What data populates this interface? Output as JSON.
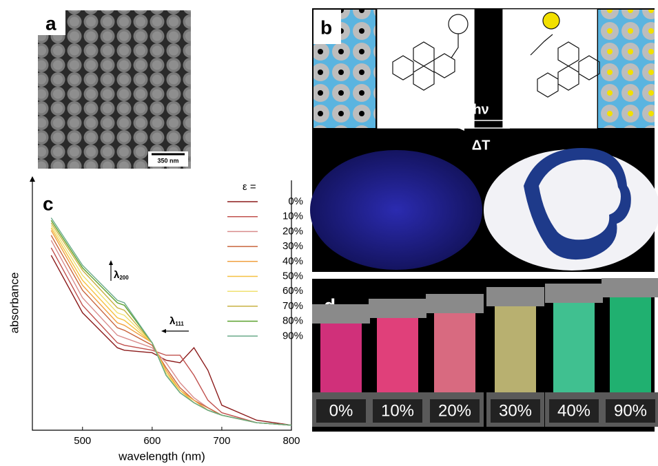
{
  "panel_a": {
    "label": "a",
    "scale_bar": "350 nm"
  },
  "panel_b": {
    "label": "b",
    "forward": "hν",
    "backward": "ΔT"
  },
  "panel_d": {
    "label": "d",
    "strains": [
      "0%",
      "10%",
      "20%",
      "30%",
      "40%",
      "90%"
    ]
  },
  "chart_data": {
    "type": "line",
    "label": "c",
    "x_label": "wavelength (nm)",
    "y_label": "absorbance",
    "legend_title": "ε =",
    "annotations": [
      {
        "symbol": "λ",
        "sub": "200"
      },
      {
        "symbol": "λ",
        "sub": "111"
      }
    ],
    "x": [
      455,
      500,
      550,
      560,
      600,
      620,
      640,
      660,
      680,
      700,
      750,
      800
    ],
    "xlim": [
      428,
      800
    ],
    "xticks": [
      500,
      600,
      700,
      800
    ],
    "ylim": [
      0,
      1
    ],
    "series": [
      {
        "name": "0%",
        "color": "#8b1a1a",
        "values": [
          0.7,
          0.47,
          0.33,
          0.32,
          0.31,
          0.28,
          0.27,
          0.33,
          0.24,
          0.1,
          0.04,
          0.02
        ]
      },
      {
        "name": "10%",
        "color": "#c0504d",
        "values": [
          0.73,
          0.5,
          0.35,
          0.34,
          0.32,
          0.3,
          0.3,
          0.22,
          0.12,
          0.07,
          0.03,
          0.02
        ]
      },
      {
        "name": "20%",
        "color": "#d98c8c",
        "values": [
          0.76,
          0.53,
          0.38,
          0.37,
          0.33,
          0.27,
          0.19,
          0.13,
          0.09,
          0.06,
          0.03,
          0.02
        ]
      },
      {
        "name": "30%",
        "color": "#c8643c",
        "values": [
          0.78,
          0.56,
          0.41,
          0.4,
          0.34,
          0.25,
          0.17,
          0.12,
          0.09,
          0.06,
          0.03,
          0.02
        ]
      },
      {
        "name": "40%",
        "color": "#f0a040",
        "values": [
          0.8,
          0.58,
          0.43,
          0.42,
          0.35,
          0.24,
          0.16,
          0.12,
          0.08,
          0.06,
          0.03,
          0.02
        ]
      },
      {
        "name": "50%",
        "color": "#f5c040",
        "values": [
          0.81,
          0.6,
          0.45,
          0.44,
          0.35,
          0.23,
          0.16,
          0.11,
          0.08,
          0.06,
          0.03,
          0.02
        ]
      },
      {
        "name": "60%",
        "color": "#f0e070",
        "values": [
          0.82,
          0.62,
          0.47,
          0.46,
          0.35,
          0.23,
          0.15,
          0.11,
          0.08,
          0.06,
          0.03,
          0.02
        ]
      },
      {
        "name": "70%",
        "color": "#c8b040",
        "values": [
          0.83,
          0.64,
          0.49,
          0.48,
          0.35,
          0.22,
          0.15,
          0.11,
          0.08,
          0.06,
          0.03,
          0.02
        ]
      },
      {
        "name": "80%",
        "color": "#5aa02c",
        "values": [
          0.84,
          0.65,
          0.51,
          0.5,
          0.35,
          0.22,
          0.15,
          0.11,
          0.08,
          0.06,
          0.03,
          0.02
        ]
      },
      {
        "name": "90%",
        "color": "#6aaa8a",
        "values": [
          0.85,
          0.66,
          0.52,
          0.51,
          0.35,
          0.22,
          0.15,
          0.11,
          0.08,
          0.06,
          0.03,
          0.02
        ]
      }
    ]
  }
}
